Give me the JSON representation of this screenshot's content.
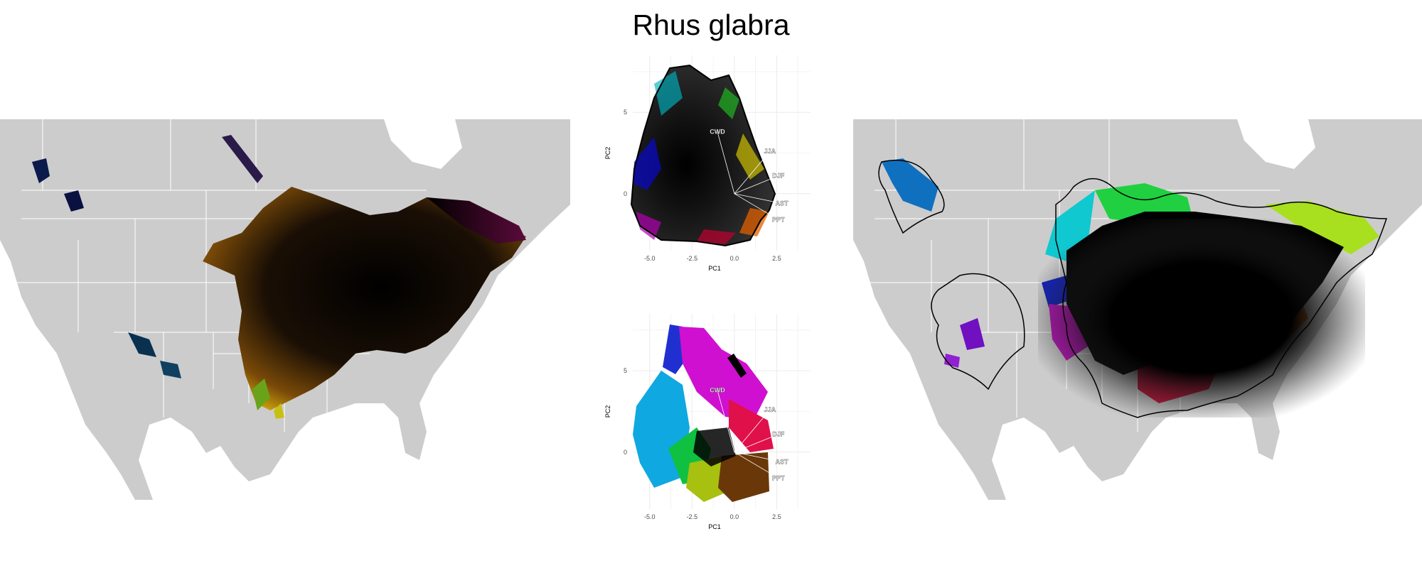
{
  "title": "Rhus glabra",
  "chart_data": [
    {
      "type": "scatter",
      "panel": "pca-top",
      "xlabel": "PC1",
      "ylabel": "PC2",
      "xticks": [
        -5.0,
        -2.5,
        0.0,
        2.5
      ],
      "yticks": [
        0,
        5
      ],
      "xlim": [
        -6.0,
        4.5
      ],
      "ylim": [
        -3.5,
        8.5
      ],
      "grid": true,
      "origin": [
        0,
        0
      ],
      "loadings": [
        {
          "name": "CWD",
          "x": -1.0,
          "y": 3.8
        },
        {
          "name": "JJA",
          "x": 2.1,
          "y": 2.6
        },
        {
          "name": "DJF",
          "x": 2.6,
          "y": 1.1
        },
        {
          "name": "AST",
          "x": 2.8,
          "y": -0.6
        },
        {
          "name": "PPT",
          "x": 2.6,
          "y": -1.6
        }
      ]
    },
    {
      "type": "scatter",
      "panel": "pca-bottom",
      "xlabel": "PC1",
      "ylabel": "PC2",
      "xticks": [
        -5.0,
        -2.5,
        0.0,
        2.5
      ],
      "yticks": [
        0,
        5
      ],
      "xlim": [
        -6.0,
        4.5
      ],
      "ylim": [
        -3.5,
        8.5
      ],
      "grid": true,
      "origin": [
        0,
        0
      ],
      "loadings": [
        {
          "name": "CWD",
          "x": -1.0,
          "y": 3.8
        },
        {
          "name": "JJA",
          "x": 2.1,
          "y": 2.6
        },
        {
          "name": "DJF",
          "x": 2.6,
          "y": 1.1
        },
        {
          "name": "AST",
          "x": 2.8,
          "y": -0.6
        },
        {
          "name": "PPT",
          "x": 2.6,
          "y": -1.6
        }
      ]
    }
  ],
  "colors": {
    "land": "#cccccc",
    "borders": "#ffffff",
    "hull": "#000000",
    "grid": "#ebebeb"
  }
}
